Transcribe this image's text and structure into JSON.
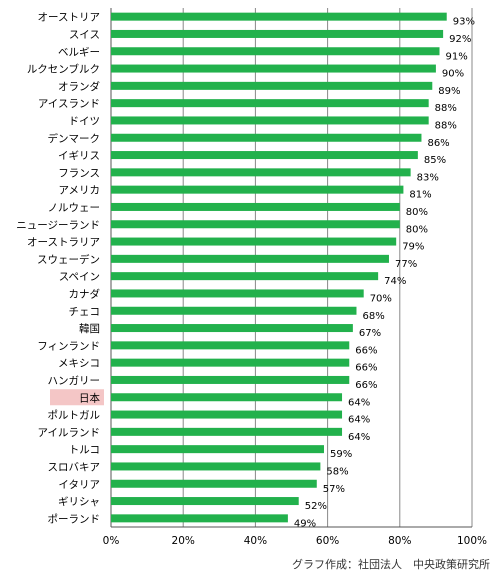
{
  "chart_data": {
    "type": "bar",
    "orientation": "horizontal",
    "categories": [
      "オーストリア",
      "スイス",
      "ベルギー",
      "ルクセンブルク",
      "オランダ",
      "アイスランド",
      "ドイツ",
      "デンマーク",
      "イギリス",
      "フランス",
      "アメリカ",
      "ノルウェー",
      "ニュージーランド",
      "オーストラリア",
      "スウェーデン",
      "スペイン",
      "カナダ",
      "チェコ",
      "韓国",
      "フィンランド",
      "メキシコ",
      "ハンガリー",
      "日本",
      "ポルトガル",
      "アイルランド",
      "トルコ",
      "スロバキア",
      "イタリア",
      "ギリシャ",
      "ポーランド"
    ],
    "values": [
      93,
      92,
      91,
      90,
      89,
      88,
      88,
      86,
      85,
      83,
      81,
      80,
      80,
      79,
      77,
      74,
      70,
      68,
      67,
      66,
      66,
      66,
      64,
      64,
      64,
      59,
      58,
      57,
      52,
      49
    ],
    "value_labels": [
      "93%",
      "92%",
      "91%",
      "90%",
      "89%",
      "88%",
      "88%",
      "86%",
      "85%",
      "83%",
      "81%",
      "80%",
      "80%",
      "79%",
      "77%",
      "74%",
      "70%",
      "68%",
      "67%",
      "66%",
      "66%",
      "66%",
      "64%",
      "64%",
      "64%",
      "59%",
      "58%",
      "57%",
      "52%",
      "49%"
    ],
    "xlim": [
      0,
      100
    ],
    "xticks": [
      "0%",
      "20%",
      "40%",
      "60%",
      "80%",
      "100%"
    ],
    "grid": "vertical",
    "highlight_category": "日本",
    "colors": {
      "bar": "#22b14c",
      "highlight_bg": "#f4c6c6",
      "grid": "#888888",
      "axis": "#555555"
    }
  },
  "credit": "グラフ作成：社団法人　中央政策研究所"
}
